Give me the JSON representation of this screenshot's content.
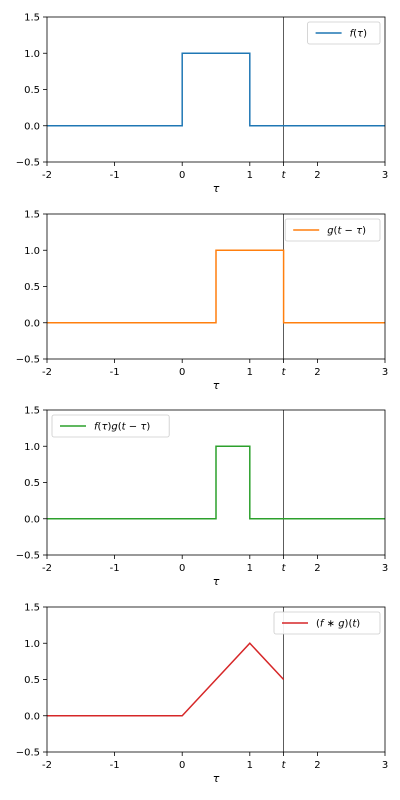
{
  "chart_data": [
    {
      "type": "line",
      "xlabel": "τ",
      "xlim": [
        -2,
        3
      ],
      "ylim": [
        -0.5,
        1.5
      ],
      "x_ticks": [
        -2,
        -1,
        0,
        1,
        2,
        3
      ],
      "x_tick_labels": [
        "-2",
        "-1",
        "0",
        "1",
        "2",
        "3"
      ],
      "y_ticks": [
        -0.5,
        0.0,
        0.5,
        1.0,
        1.5
      ],
      "y_tick_labels": [
        "−0.5",
        "0.0",
        "0.5",
        "1.0",
        "1.5"
      ],
      "t_marker": {
        "x": 1.5,
        "label": "t"
      },
      "legend_position": "top-right",
      "series": [
        {
          "name": "f(τ)",
          "color": "#1f77b4",
          "points": [
            [
              -2,
              0
            ],
            [
              0,
              0
            ],
            [
              0,
              1
            ],
            [
              1,
              1
            ],
            [
              1,
              0
            ],
            [
              3,
              0
            ]
          ]
        }
      ]
    },
    {
      "type": "line",
      "xlabel": "τ",
      "xlim": [
        -2,
        3
      ],
      "ylim": [
        -0.5,
        1.5
      ],
      "x_ticks": [
        -2,
        -1,
        0,
        1,
        2,
        3
      ],
      "x_tick_labels": [
        "-2",
        "-1",
        "0",
        "1",
        "2",
        "3"
      ],
      "y_ticks": [
        -0.5,
        0.0,
        0.5,
        1.0,
        1.5
      ],
      "y_tick_labels": [
        "−0.5",
        "0.0",
        "0.5",
        "1.0",
        "1.5"
      ],
      "t_marker": {
        "x": 1.5,
        "label": "t"
      },
      "legend_position": "top-right",
      "series": [
        {
          "name": "g(t − τ)",
          "color": "#ff7f0e",
          "points": [
            [
              -2,
              0
            ],
            [
              0.5,
              0
            ],
            [
              0.5,
              1
            ],
            [
              1.5,
              1
            ],
            [
              1.5,
              0
            ],
            [
              3,
              0
            ]
          ]
        }
      ]
    },
    {
      "type": "line",
      "xlabel": "τ",
      "xlim": [
        -2,
        3
      ],
      "ylim": [
        -0.5,
        1.5
      ],
      "x_ticks": [
        -2,
        -1,
        0,
        1,
        2,
        3
      ],
      "x_tick_labels": [
        "-2",
        "-1",
        "0",
        "1",
        "2",
        "3"
      ],
      "y_ticks": [
        -0.5,
        0.0,
        0.5,
        1.0,
        1.5
      ],
      "y_tick_labels": [
        "−0.5",
        "0.0",
        "0.5",
        "1.0",
        "1.5"
      ],
      "t_marker": {
        "x": 1.5,
        "label": "t"
      },
      "legend_position": "top-left",
      "series": [
        {
          "name": "f(τ)g(t − τ)",
          "color": "#2ca02c",
          "points": [
            [
              -2,
              0
            ],
            [
              0.5,
              0
            ],
            [
              0.5,
              1
            ],
            [
              1,
              1
            ],
            [
              1,
              0
            ],
            [
              3,
              0
            ]
          ]
        }
      ]
    },
    {
      "type": "line",
      "xlabel": "τ",
      "xlim": [
        -2,
        3
      ],
      "ylim": [
        -0.5,
        1.5
      ],
      "x_ticks": [
        -2,
        -1,
        0,
        1,
        2,
        3
      ],
      "x_tick_labels": [
        "-2",
        "-1",
        "0",
        "1",
        "2",
        "3"
      ],
      "y_ticks": [
        -0.5,
        0.0,
        0.5,
        1.0,
        1.5
      ],
      "y_tick_labels": [
        "−0.5",
        "0.0",
        "0.5",
        "1.0",
        "1.5"
      ],
      "t_marker": {
        "x": 1.5,
        "label": "t"
      },
      "legend_position": "top-right",
      "series": [
        {
          "name": "(f ∗ g)(t)",
          "color": "#d62728",
          "points": [
            [
              -2,
              0
            ],
            [
              0,
              0
            ],
            [
              1,
              1
            ],
            [
              1.5,
              0.5
            ]
          ]
        }
      ]
    }
  ]
}
